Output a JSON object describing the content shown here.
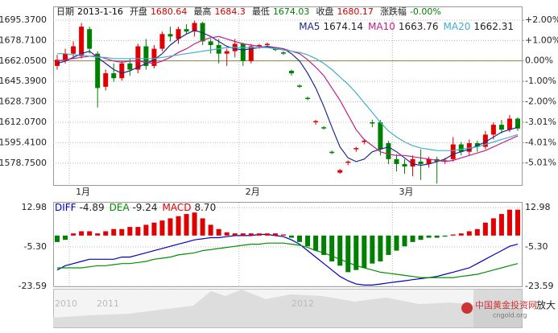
{
  "chart_data": [
    {
      "type": "candlestick",
      "info": [
        {
          "label": "日期",
          "value": "2013-1-16",
          "color": "#000000"
        },
        {
          "label": "开盘",
          "value": 1680.64,
          "color": "#d00000"
        },
        {
          "label": "最高",
          "value": 1684.3,
          "color": "#d00000"
        },
        {
          "label": "最低",
          "value": 1674.03,
          "color": "#008000"
        },
        {
          "label": "收盘",
          "value": 1680.17,
          "color": "#d00000"
        },
        {
          "label": "涨跌幅",
          "value": "-0.00%",
          "color": "#008000"
        }
      ],
      "categories": [
        null,
        null,
        "1月",
        null,
        null,
        null,
        null,
        null,
        null,
        null,
        null,
        null,
        null,
        null,
        null,
        null,
        null,
        null,
        null,
        null,
        null,
        null,
        null,
        "2月",
        null,
        null,
        null,
        null,
        null,
        null,
        null,
        null,
        null,
        null,
        null,
        null,
        null,
        null,
        null,
        null,
        null,
        null,
        "3月",
        null,
        null,
        null,
        null,
        null,
        null,
        null,
        null,
        null,
        null,
        null,
        null,
        null,
        null,
        null
      ],
      "open": [
        1658,
        1663,
        1668,
        1666,
        1688,
        1668,
        1641,
        1652,
        1648,
        1660,
        1655,
        1674,
        1658,
        1672,
        1684,
        1680,
        1688,
        1686,
        1693,
        1678,
        1675,
        1668,
        1670,
        1676,
        1662,
        1674,
        1675,
        1672,
        1669,
        1654,
        1642,
        1632,
        1612,
        1608,
        1588,
        1571,
        1579,
        1590,
        1596,
        1612,
        1612,
        1595,
        1582,
        1578,
        1576,
        1580,
        1578,
        1582,
        1580,
        1582,
        1594,
        1588,
        1595,
        1592,
        1602,
        1610,
        1606,
        1615
      ],
      "high": [
        1667,
        1672,
        1678,
        1693,
        1690,
        1670,
        1655,
        1660,
        1662,
        1664,
        1676,
        1680,
        1675,
        1686,
        1690,
        1690,
        1692,
        1695,
        1694,
        1680,
        1680,
        1672,
        1680,
        1677,
        1676,
        1676,
        1677,
        1673,
        1670,
        1655,
        1643,
        1633,
        1614,
        1609,
        1589,
        1574,
        1581,
        1592,
        1598,
        1614,
        1614,
        1597,
        1586,
        1582,
        1585,
        1590,
        1584,
        1584,
        1583,
        1600,
        1596,
        1598,
        1597,
        1605,
        1612,
        1614,
        1618,
        1616
      ],
      "low": [
        1655,
        1660,
        1664,
        1664,
        1668,
        1624,
        1638,
        1645,
        1646,
        1650,
        1652,
        1655,
        1656,
        1670,
        1678,
        1676,
        1684,
        1682,
        1675,
        1668,
        1660,
        1658,
        1665,
        1658,
        1660,
        1672,
        1673,
        1670,
        1667,
        1650,
        1640,
        1630,
        1610,
        1606,
        1586,
        1570,
        1577,
        1588,
        1594,
        1608,
        1585,
        1578,
        1572,
        1570,
        1568,
        1565,
        1575,
        1562,
        1578,
        1580,
        1585,
        1585,
        1588,
        1590,
        1598,
        1603,
        1604,
        1605
      ],
      "close": [
        1663,
        1668,
        1674,
        1690,
        1672,
        1640,
        1652,
        1648,
        1660,
        1655,
        1674,
        1658,
        1672,
        1684,
        1682,
        1688,
        1686,
        1693,
        1678,
        1675,
        1668,
        1670,
        1676,
        1662,
        1674,
        1675,
        1676,
        1671,
        1668,
        1652,
        1641,
        1631,
        1613,
        1607,
        1587,
        1573,
        1580,
        1591,
        1597,
        1611,
        1590,
        1582,
        1578,
        1576,
        1582,
        1578,
        1582,
        1580,
        1581,
        1594,
        1588,
        1595,
        1592,
        1602,
        1610,
        1606,
        1615,
        1607
      ],
      "up_color": "#e00000",
      "down_color": "#008000",
      "series": [
        {
          "name": "MA5",
          "legend_value": 1674.14,
          "color": "#1c2a8c",
          "values": [
            1660,
            1662,
            1665,
            1668,
            1670,
            1665,
            1660,
            1655,
            1652,
            1654,
            1657,
            1660,
            1663,
            1668,
            1675,
            1680,
            1684,
            1687,
            1685,
            1682,
            1678,
            1674,
            1672,
            1671,
            1672,
            1673,
            1674,
            1673,
            1672,
            1668,
            1662,
            1652,
            1640,
            1625,
            1608,
            1592,
            1583,
            1580,
            1582,
            1588,
            1590,
            1592,
            1588,
            1583,
            1578,
            1577,
            1578,
            1580,
            1582,
            1586,
            1588,
            1590,
            1593,
            1596,
            1600,
            1604,
            1606,
            1608
          ]
        },
        {
          "name": "MA10",
          "legend_value": 1663.76,
          "color": "#c0208a",
          "values": [
            1662,
            1663,
            1664,
            1665,
            1666,
            1666,
            1664,
            1662,
            1661,
            1662,
            1662,
            1661,
            1660,
            1662,
            1665,
            1669,
            1672,
            1676,
            1679,
            1681,
            1682,
            1680,
            1678,
            1676,
            1675,
            1674,
            1673,
            1673,
            1672,
            1670,
            1668,
            1663,
            1657,
            1650,
            1640,
            1630,
            1618,
            1606,
            1598,
            1593,
            1588,
            1586,
            1585,
            1585,
            1584,
            1583,
            1582,
            1581,
            1580,
            1581,
            1583,
            1585,
            1587,
            1589,
            1592,
            1595,
            1598,
            1601
          ]
        },
        {
          "name": "MA20",
          "legend_value": 1662.31,
          "color": "#40b0c8",
          "values": [
            1668,
            1668,
            1667,
            1667,
            1666,
            1665,
            1665,
            1664,
            1664,
            1664,
            1664,
            1664,
            1664,
            1665,
            1666,
            1667,
            1668,
            1669,
            1670,
            1671,
            1672,
            1673,
            1673,
            1673,
            1673,
            1673,
            1673,
            1672,
            1671,
            1670,
            1669,
            1667,
            1664,
            1660,
            1655,
            1649,
            1643,
            1636,
            1628,
            1620,
            1612,
            1605,
            1600,
            1596,
            1593,
            1591,
            1590,
            1589,
            1589,
            1589,
            1590,
            1591,
            1592,
            1594,
            1596,
            1598,
            1600,
            1602
          ]
        }
      ],
      "ylim": [
        1560.9,
        1706.5
      ],
      "yticks": [
        {
          "value": 1695.37,
          "label": "1695.3700"
        },
        {
          "value": 1678.71,
          "label": "1678.7100"
        },
        {
          "value": 1662.05,
          "label": "1662.0500"
        },
        {
          "value": 1645.39,
          "label": "1645.3900"
        },
        {
          "value": 1628.73,
          "label": "1628.7300"
        },
        {
          "value": 1612.07,
          "label": "1612.0700"
        },
        {
          "value": 1595.41,
          "label": "1595.4100"
        },
        {
          "value": 1578.75,
          "label": "1578.7500"
        }
      ],
      "y2lim": [
        -6.09,
        2.67
      ],
      "y2ticks": [
        {
          "value": 2,
          "label": "+2.00%"
        },
        {
          "value": 1,
          "label": "+1.00%"
        },
        {
          "value": 0,
          "label": "0.00%"
        },
        {
          "value": -1,
          "label": "-1.00%"
        },
        {
          "value": -2,
          "label": "-2.00%"
        },
        {
          "value": -3.01,
          "label": "-3.01%"
        },
        {
          "value": -4.01,
          "label": "-4.01%"
        },
        {
          "value": -5.01,
          "label": "-5.01%"
        }
      ],
      "grid": true
    },
    {
      "type": "macd",
      "series": [
        {
          "name": "DIFF",
          "legend_value": -4.89,
          "color": "#0000c0",
          "values": [
            -16,
            -14,
            -13,
            -12,
            -11,
            -11,
            -11,
            -11,
            -10,
            -10,
            -9,
            -8,
            -7,
            -6,
            -5,
            -4,
            -3,
            -2,
            -1.5,
            -1,
            -1,
            -0.5,
            0,
            0,
            0,
            0.5,
            0.5,
            0,
            -0.5,
            -2,
            -4,
            -7,
            -10,
            -13,
            -16,
            -19,
            -21,
            -22.5,
            -23,
            -23,
            -22.5,
            -22,
            -21.5,
            -21,
            -20.5,
            -20,
            -19.5,
            -19,
            -18,
            -17,
            -16,
            -15,
            -13,
            -11,
            -9,
            -7,
            -5,
            -4
          ]
        },
        {
          "name": "DEA",
          "legend_value": -9.24,
          "color": "#009000",
          "values": [
            -15,
            -15,
            -15,
            -15,
            -14.5,
            -14,
            -14,
            -13.5,
            -13,
            -13,
            -12.5,
            -12,
            -11,
            -10.5,
            -10,
            -9,
            -8.5,
            -8,
            -7,
            -6.5,
            -6,
            -5.5,
            -5,
            -4.5,
            -4,
            -4,
            -3.5,
            -3.5,
            -3.5,
            -4,
            -4.5,
            -5.5,
            -7,
            -8,
            -9.5,
            -11,
            -12.5,
            -14,
            -15,
            -16,
            -17,
            -17.5,
            -18,
            -18.5,
            -19,
            -19.5,
            -19.5,
            -19.5,
            -19.5,
            -19.5,
            -19,
            -18.5,
            -18,
            -17,
            -16,
            -15,
            -14,
            -13
          ]
        },
        {
          "name": "MACD",
          "legend_value": "8.70",
          "color": "#e00000",
          "bar": true,
          "values": [
            -3,
            -2,
            1,
            2,
            2,
            1,
            2,
            3,
            3,
            4,
            4,
            5,
            6,
            7,
            8,
            9,
            10,
            10.7,
            8,
            5,
            3,
            1.5,
            1,
            1,
            1,
            1,
            1,
            1,
            0.5,
            -1,
            -3,
            -5,
            -7,
            -9,
            -12,
            -14,
            -17,
            -16,
            -15,
            -13,
            -12,
            -9,
            -7,
            -5,
            -3,
            -2,
            -1,
            -1,
            -0.5,
            0.5,
            1,
            2,
            3,
            6,
            8,
            10,
            12,
            12
          ]
        }
      ],
      "up_color": "#e00000",
      "down_color": "#008000",
      "ylim": [
        -23.59,
        15.26
      ],
      "yticks": [
        12.98,
        {
          "value": -5.3,
          "label": "-5.30"
        },
        -23.59
      ],
      "grid": true
    }
  ],
  "navigator": {
    "year_labels": [
      "2010",
      "2011",
      "2012"
    ],
    "logo": "中国黄金投资网",
    "logo_sub": "cngold.org",
    "zoom": "放大"
  }
}
